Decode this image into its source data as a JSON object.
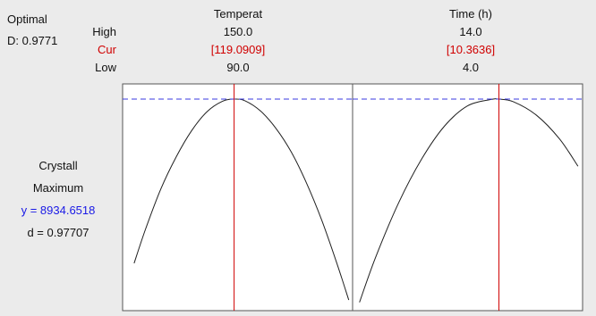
{
  "optimal": {
    "label": "Optimal",
    "d_text": "D: 0.9771"
  },
  "row_labels": {
    "high": "High",
    "cur": "Cur",
    "low": "Low"
  },
  "factors": [
    {
      "name": "Temperat",
      "high": "150.0",
      "cur": "[119.0909]",
      "low": "90.0"
    },
    {
      "name": "Time (h)",
      "high": "14.0",
      "cur": "[10.3636]",
      "low": "4.0"
    }
  ],
  "response": {
    "name": "Crystall",
    "goal": "Maximum",
    "y_text": "y = 8934.6518",
    "d_text": "d = 0.97707"
  },
  "colors": {
    "current_line": "#d00000",
    "reference_line": "#3a3ae0",
    "curve": "#202020",
    "y_text": "#1a1ae6",
    "cur_text": "#d00000"
  },
  "chart_data": {
    "type": "line",
    "title": "",
    "y_reference": 8934.6518,
    "panels": [
      {
        "factor": "Temperat",
        "xlim": [
          90.0,
          150.0
        ],
        "current_x": 119.0909,
        "ylim": [
          0,
          9200
        ],
        "x": [
          93,
          96,
          100,
          104,
          108,
          112,
          116,
          119.0909,
          122,
          126,
          130,
          134,
          138,
          142,
          146,
          149
        ],
        "values": [
          2000,
          3450,
          5150,
          6500,
          7600,
          8400,
          8840,
          8934.65,
          8860,
          8430,
          7700,
          6700,
          5380,
          3800,
          1950,
          450
        ]
      },
      {
        "factor": "Time (h)",
        "xlim": [
          4.0,
          14.0
        ],
        "current_x": 10.3636,
        "ylim": [
          0,
          9200
        ],
        "x": [
          4.3,
          5,
          6,
          7,
          8,
          9,
          10,
          10.3636,
          11,
          12,
          13,
          13.8
        ],
        "values": [
          350,
          2250,
          4550,
          6400,
          7800,
          8650,
          8915,
          8934.65,
          8820,
          8250,
          7250,
          6100
        ]
      }
    ]
  }
}
